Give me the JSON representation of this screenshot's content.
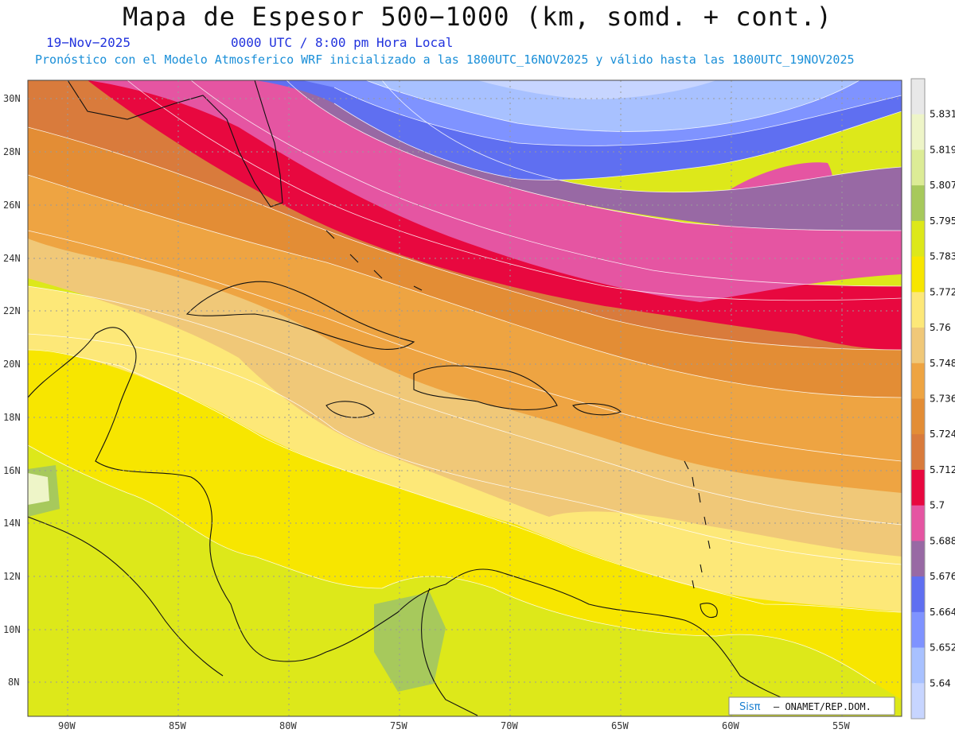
{
  "header": {
    "title": "Mapa de Espesor 500−1000 (km, somd. + cont.)",
    "date": "19−Nov−2025",
    "valid_time": "0000 UTC / 8:00 pm Hora Local",
    "model_line": "Pronóstico con el Modelo Atmosferico WRF inicializado a las 1800UTC_16NOV2025 y válido hasta las  1800UTC_19NOV2025"
  },
  "map": {
    "lat_ticks": [
      "30N",
      "28N",
      "26N",
      "24N",
      "22N",
      "20N",
      "18N",
      "16N",
      "14N",
      "12N",
      "10N",
      "8N"
    ],
    "lon_ticks": [
      "90W",
      "85W",
      "80W",
      "75W",
      "70W",
      "65W",
      "60W",
      "55W"
    ]
  },
  "colorbar": {
    "labels": [
      "5.831",
      "5.819",
      "5.807",
      "5.795",
      "5.783",
      "5.772",
      "5.76",
      "5.748",
      "5.736",
      "5.724",
      "5.712",
      "5.7",
      "5.688",
      "5.676",
      "5.664",
      "5.652",
      "5.64"
    ],
    "colors": [
      "#e8e8e8",
      "#eef5c8",
      "#dcec96",
      "#a7c95c",
      "#dde81a",
      "#f7e600",
      "#fde878",
      "#f0c878",
      "#eea442",
      "#e38d35",
      "#d97b3c",
      "#e8083f",
      "#e555a2",
      "#9869a4",
      "#5f6ff1",
      "#7f93ff",
      "#a8c1ff",
      "#c7d5ff"
    ]
  },
  "credit": {
    "logo": "Sisπ",
    "text": "– ONAMET/REP.DOM."
  }
}
